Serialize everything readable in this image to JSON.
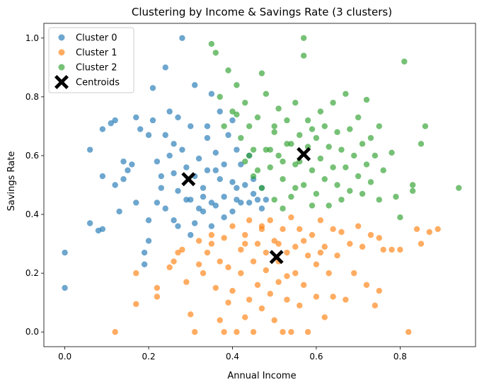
{
  "chart_data": {
    "type": "scatter",
    "title": "Clustering by Income & Savings Rate (3 clusters)",
    "xlabel": "Annual Income",
    "ylabel": "Savings Rate",
    "xlim": [
      -0.05,
      0.98
    ],
    "ylim": [
      -0.05,
      1.05
    ],
    "xticks": [
      0.0,
      0.2,
      0.4,
      0.6,
      0.8
    ],
    "xtick_labels": [
      "0.0",
      "0.2",
      "0.4",
      "0.6",
      "0.8"
    ],
    "yticks": [
      0.0,
      0.2,
      0.4,
      0.6,
      0.8,
      1.0
    ],
    "ytick_labels": [
      "0.0",
      "0.2",
      "0.4",
      "0.6",
      "0.8",
      "1.0"
    ],
    "grid": false,
    "legend_position": "top-left",
    "series": [
      {
        "name": "Cluster 0",
        "color": "#1f77b4",
        "marker": "circle",
        "points": [
          [
            0.0,
            0.27
          ],
          [
            0.0,
            0.15
          ],
          [
            0.06,
            0.62
          ],
          [
            0.06,
            0.37
          ],
          [
            0.08,
            0.345
          ],
          [
            0.09,
            0.35
          ],
          [
            0.09,
            0.69
          ],
          [
            0.09,
            0.53
          ],
          [
            0.11,
            0.71
          ],
          [
            0.12,
            0.72
          ],
          [
            0.12,
            0.5
          ],
          [
            0.13,
            0.41
          ],
          [
            0.14,
            0.52
          ],
          [
            0.14,
            0.58
          ],
          [
            0.15,
            0.55
          ],
          [
            0.16,
            0.57
          ],
          [
            0.17,
            0.44
          ],
          [
            0.17,
            0.73
          ],
          [
            0.18,
            0.69
          ],
          [
            0.19,
            0.27
          ],
          [
            0.19,
            0.23
          ],
          [
            0.2,
            0.31
          ],
          [
            0.2,
            0.38
          ],
          [
            0.2,
            0.67
          ],
          [
            0.21,
            0.83
          ],
          [
            0.21,
            0.72
          ],
          [
            0.22,
            0.58
          ],
          [
            0.22,
            0.44
          ],
          [
            0.23,
            0.49
          ],
          [
            0.24,
            0.42
          ],
          [
            0.24,
            0.9
          ],
          [
            0.24,
            0.67
          ],
          [
            0.25,
            0.75
          ],
          [
            0.25,
            0.6
          ],
          [
            0.26,
            0.54
          ],
          [
            0.26,
            0.38
          ],
          [
            0.27,
            0.36
          ],
          [
            0.27,
            0.73
          ],
          [
            0.28,
            1.0
          ],
          [
            0.28,
            0.62
          ],
          [
            0.29,
            0.45
          ],
          [
            0.29,
            0.56
          ],
          [
            0.3,
            0.7
          ],
          [
            0.3,
            0.33
          ],
          [
            0.31,
            0.53
          ],
          [
            0.31,
            0.37
          ],
          [
            0.31,
            0.84
          ],
          [
            0.32,
            0.42
          ],
          [
            0.32,
            0.59
          ],
          [
            0.33,
            0.46
          ],
          [
            0.33,
            0.49
          ],
          [
            0.34,
            0.66
          ],
          [
            0.34,
            0.55
          ],
          [
            0.35,
            0.81
          ],
          [
            0.35,
            0.36
          ],
          [
            0.35,
            0.44
          ],
          [
            0.36,
            0.61
          ],
          [
            0.36,
            0.43
          ],
          [
            0.37,
            0.75
          ],
          [
            0.37,
            0.52
          ],
          [
            0.38,
            0.46
          ],
          [
            0.38,
            0.57
          ],
          [
            0.38,
            0.39
          ],
          [
            0.39,
            0.67
          ],
          [
            0.4,
            0.41
          ],
          [
            0.4,
            0.51
          ],
          [
            0.4,
            0.72
          ],
          [
            0.41,
            0.49
          ],
          [
            0.41,
            0.45
          ],
          [
            0.42,
            0.57
          ],
          [
            0.42,
            0.44
          ],
          [
            0.43,
            0.5
          ],
          [
            0.44,
            0.6
          ],
          [
            0.44,
            0.44
          ],
          [
            0.45,
            0.52
          ],
          [
            0.45,
            0.47
          ],
          [
            0.46,
            0.45
          ],
          [
            0.47,
            0.49
          ],
          [
            0.47,
            0.42
          ],
          [
            0.48,
            0.45
          ],
          [
            0.3,
            0.45
          ],
          [
            0.33,
            0.41
          ],
          [
            0.27,
            0.48
          ],
          [
            0.23,
            0.53
          ],
          [
            0.26,
            0.64
          ],
          [
            0.34,
            0.7
          ],
          [
            0.36,
            0.55
          ],
          [
            0.41,
            0.62
          ]
        ]
      },
      {
        "name": "Cluster 1",
        "color": "#ff7f0e",
        "marker": "circle",
        "points": [
          [
            0.12,
            0.0
          ],
          [
            0.17,
            0.2
          ],
          [
            0.17,
            0.095
          ],
          [
            0.22,
            0.12
          ],
          [
            0.22,
            0.15
          ],
          [
            0.25,
            0.22
          ],
          [
            0.26,
            0.24
          ],
          [
            0.27,
            0.27
          ],
          [
            0.28,
            0.28
          ],
          [
            0.29,
            0.17
          ],
          [
            0.3,
            0.06
          ],
          [
            0.31,
            0.0
          ],
          [
            0.32,
            0.23
          ],
          [
            0.32,
            0.31
          ],
          [
            0.33,
            0.2
          ],
          [
            0.34,
            0.27
          ],
          [
            0.35,
            0.3
          ],
          [
            0.36,
            0.15
          ],
          [
            0.37,
            0.24
          ],
          [
            0.37,
            0.04
          ],
          [
            0.38,
            0.0
          ],
          [
            0.38,
            0.32
          ],
          [
            0.39,
            0.22
          ],
          [
            0.4,
            0.14
          ],
          [
            0.4,
            0.36
          ],
          [
            0.41,
            0.0
          ],
          [
            0.42,
            0.2
          ],
          [
            0.42,
            0.28
          ],
          [
            0.43,
            0.05
          ],
          [
            0.43,
            0.33
          ],
          [
            0.44,
            0.11
          ],
          [
            0.44,
            0.38
          ],
          [
            0.45,
            0.24
          ],
          [
            0.45,
            0.0
          ],
          [
            0.46,
            0.16
          ],
          [
            0.46,
            0.3
          ],
          [
            0.47,
            0.08
          ],
          [
            0.47,
            0.36
          ],
          [
            0.48,
            0.21
          ],
          [
            0.48,
            0.27
          ],
          [
            0.49,
            0.13
          ],
          [
            0.49,
            0.38
          ],
          [
            0.5,
            0.04
          ],
          [
            0.5,
            0.31
          ],
          [
            0.51,
            0.17
          ],
          [
            0.51,
            0.24
          ],
          [
            0.52,
            0.0
          ],
          [
            0.52,
            0.35
          ],
          [
            0.53,
            0.11
          ],
          [
            0.53,
            0.27
          ],
          [
            0.54,
            0.0
          ],
          [
            0.54,
            0.39
          ],
          [
            0.55,
            0.2
          ],
          [
            0.55,
            0.29
          ],
          [
            0.56,
            0.09
          ],
          [
            0.56,
            0.35
          ],
          [
            0.57,
            0.16
          ],
          [
            0.58,
            0.26
          ],
          [
            0.58,
            0.0
          ],
          [
            0.59,
            0.33
          ],
          [
            0.6,
            0.12
          ],
          [
            0.6,
            0.23
          ],
          [
            0.61,
            0.38
          ],
          [
            0.62,
            0.05
          ],
          [
            0.62,
            0.29
          ],
          [
            0.63,
            0.2
          ],
          [
            0.64,
            0.35
          ],
          [
            0.64,
            0.12
          ],
          [
            0.65,
            0.26
          ],
          [
            0.66,
            0.34
          ],
          [
            0.67,
            0.11
          ],
          [
            0.68,
            0.3
          ],
          [
            0.69,
            0.2
          ],
          [
            0.7,
            0.36
          ],
          [
            0.71,
            0.29
          ],
          [
            0.72,
            0.16
          ],
          [
            0.73,
            0.33
          ],
          [
            0.74,
            0.09
          ],
          [
            0.75,
            0.32
          ],
          [
            0.75,
            0.14
          ],
          [
            0.76,
            0.28
          ],
          [
            0.78,
            0.28
          ],
          [
            0.8,
            0.28
          ],
          [
            0.82,
            0.0
          ],
          [
            0.84,
            0.35
          ],
          [
            0.85,
            0.3
          ],
          [
            0.89,
            0.35
          ],
          [
            0.87,
            0.34
          ],
          [
            0.35,
            0.33
          ],
          [
            0.39,
            0.1
          ],
          [
            0.43,
            0.3
          ],
          [
            0.47,
            0.35
          ],
          [
            0.51,
            0.3
          ],
          [
            0.53,
            0.19
          ],
          [
            0.57,
            0.31
          ],
          [
            0.61,
            0.27
          ]
        ]
      },
      {
        "name": "Cluster 2",
        "color": "#2ca02c",
        "marker": "circle",
        "points": [
          [
            0.35,
            0.98
          ],
          [
            0.36,
            0.95
          ],
          [
            0.37,
            0.8
          ],
          [
            0.38,
            0.7
          ],
          [
            0.39,
            0.89
          ],
          [
            0.4,
            0.75
          ],
          [
            0.41,
            0.84
          ],
          [
            0.42,
            0.66
          ],
          [
            0.43,
            0.58
          ],
          [
            0.44,
            0.7
          ],
          [
            0.45,
            0.62
          ],
          [
            0.45,
            0.53
          ],
          [
            0.46,
            0.73
          ],
          [
            0.47,
            0.88
          ],
          [
            0.47,
            0.49
          ],
          [
            0.48,
            0.81
          ],
          [
            0.48,
            0.62
          ],
          [
            0.49,
            0.56
          ],
          [
            0.5,
            0.68
          ],
          [
            0.5,
            0.45
          ],
          [
            0.51,
            0.76
          ],
          [
            0.51,
            0.6
          ],
          [
            0.52,
            0.52
          ],
          [
            0.53,
            0.72
          ],
          [
            0.53,
            0.64
          ],
          [
            0.54,
            0.46
          ],
          [
            0.55,
            0.57
          ],
          [
            0.55,
            0.78
          ],
          [
            0.56,
            0.67
          ],
          [
            0.57,
            0.94
          ],
          [
            0.57,
            1.0
          ],
          [
            0.57,
            0.5
          ],
          [
            0.58,
            0.63
          ],
          [
            0.58,
            0.72
          ],
          [
            0.59,
            0.43
          ],
          [
            0.59,
            0.55
          ],
          [
            0.6,
            0.66
          ],
          [
            0.6,
            0.47
          ],
          [
            0.61,
            0.59
          ],
          [
            0.61,
            0.75
          ],
          [
            0.62,
            0.7
          ],
          [
            0.62,
            0.52
          ],
          [
            0.63,
            0.63
          ],
          [
            0.63,
            0.43
          ],
          [
            0.64,
            0.78
          ],
          [
            0.64,
            0.56
          ],
          [
            0.65,
            0.68
          ],
          [
            0.65,
            0.5
          ],
          [
            0.66,
            0.62
          ],
          [
            0.66,
            0.45
          ],
          [
            0.67,
            0.81
          ],
          [
            0.67,
            0.56
          ],
          [
            0.68,
            0.69
          ],
          [
            0.68,
            0.48
          ],
          [
            0.69,
            0.6
          ],
          [
            0.7,
            0.53
          ],
          [
            0.7,
            0.73
          ],
          [
            0.71,
            0.64
          ],
          [
            0.71,
            0.47
          ],
          [
            0.72,
            0.57
          ],
          [
            0.72,
            0.79
          ],
          [
            0.73,
            0.66
          ],
          [
            0.73,
            0.51
          ],
          [
            0.74,
            0.6
          ],
          [
            0.75,
            0.45
          ],
          [
            0.75,
            0.7
          ],
          [
            0.76,
            0.55
          ],
          [
            0.78,
            0.61
          ],
          [
            0.79,
            0.46
          ],
          [
            0.8,
            0.39
          ],
          [
            0.81,
            0.92
          ],
          [
            0.83,
            0.5
          ],
          [
            0.85,
            0.64
          ],
          [
            0.86,
            0.7
          ],
          [
            0.94,
            0.49
          ],
          [
            0.83,
            0.48
          ],
          [
            0.55,
            0.49
          ],
          [
            0.52,
            0.42
          ],
          [
            0.56,
            0.58
          ],
          [
            0.49,
            0.62
          ],
          [
            0.44,
            0.6
          ],
          [
            0.46,
            0.55
          ],
          [
            0.52,
            0.58
          ],
          [
            0.54,
            0.64
          ],
          [
            0.59,
            0.69
          ],
          [
            0.41,
            0.74
          ],
          [
            0.43,
            0.78
          ],
          [
            0.5,
            0.7
          ]
        ]
      }
    ],
    "centroids": {
      "name": "Centroids",
      "color": "#000000",
      "marker": "X",
      "points": [
        [
          0.295,
          0.52
        ],
        [
          0.505,
          0.255
        ],
        [
          0.57,
          0.605
        ]
      ]
    }
  }
}
